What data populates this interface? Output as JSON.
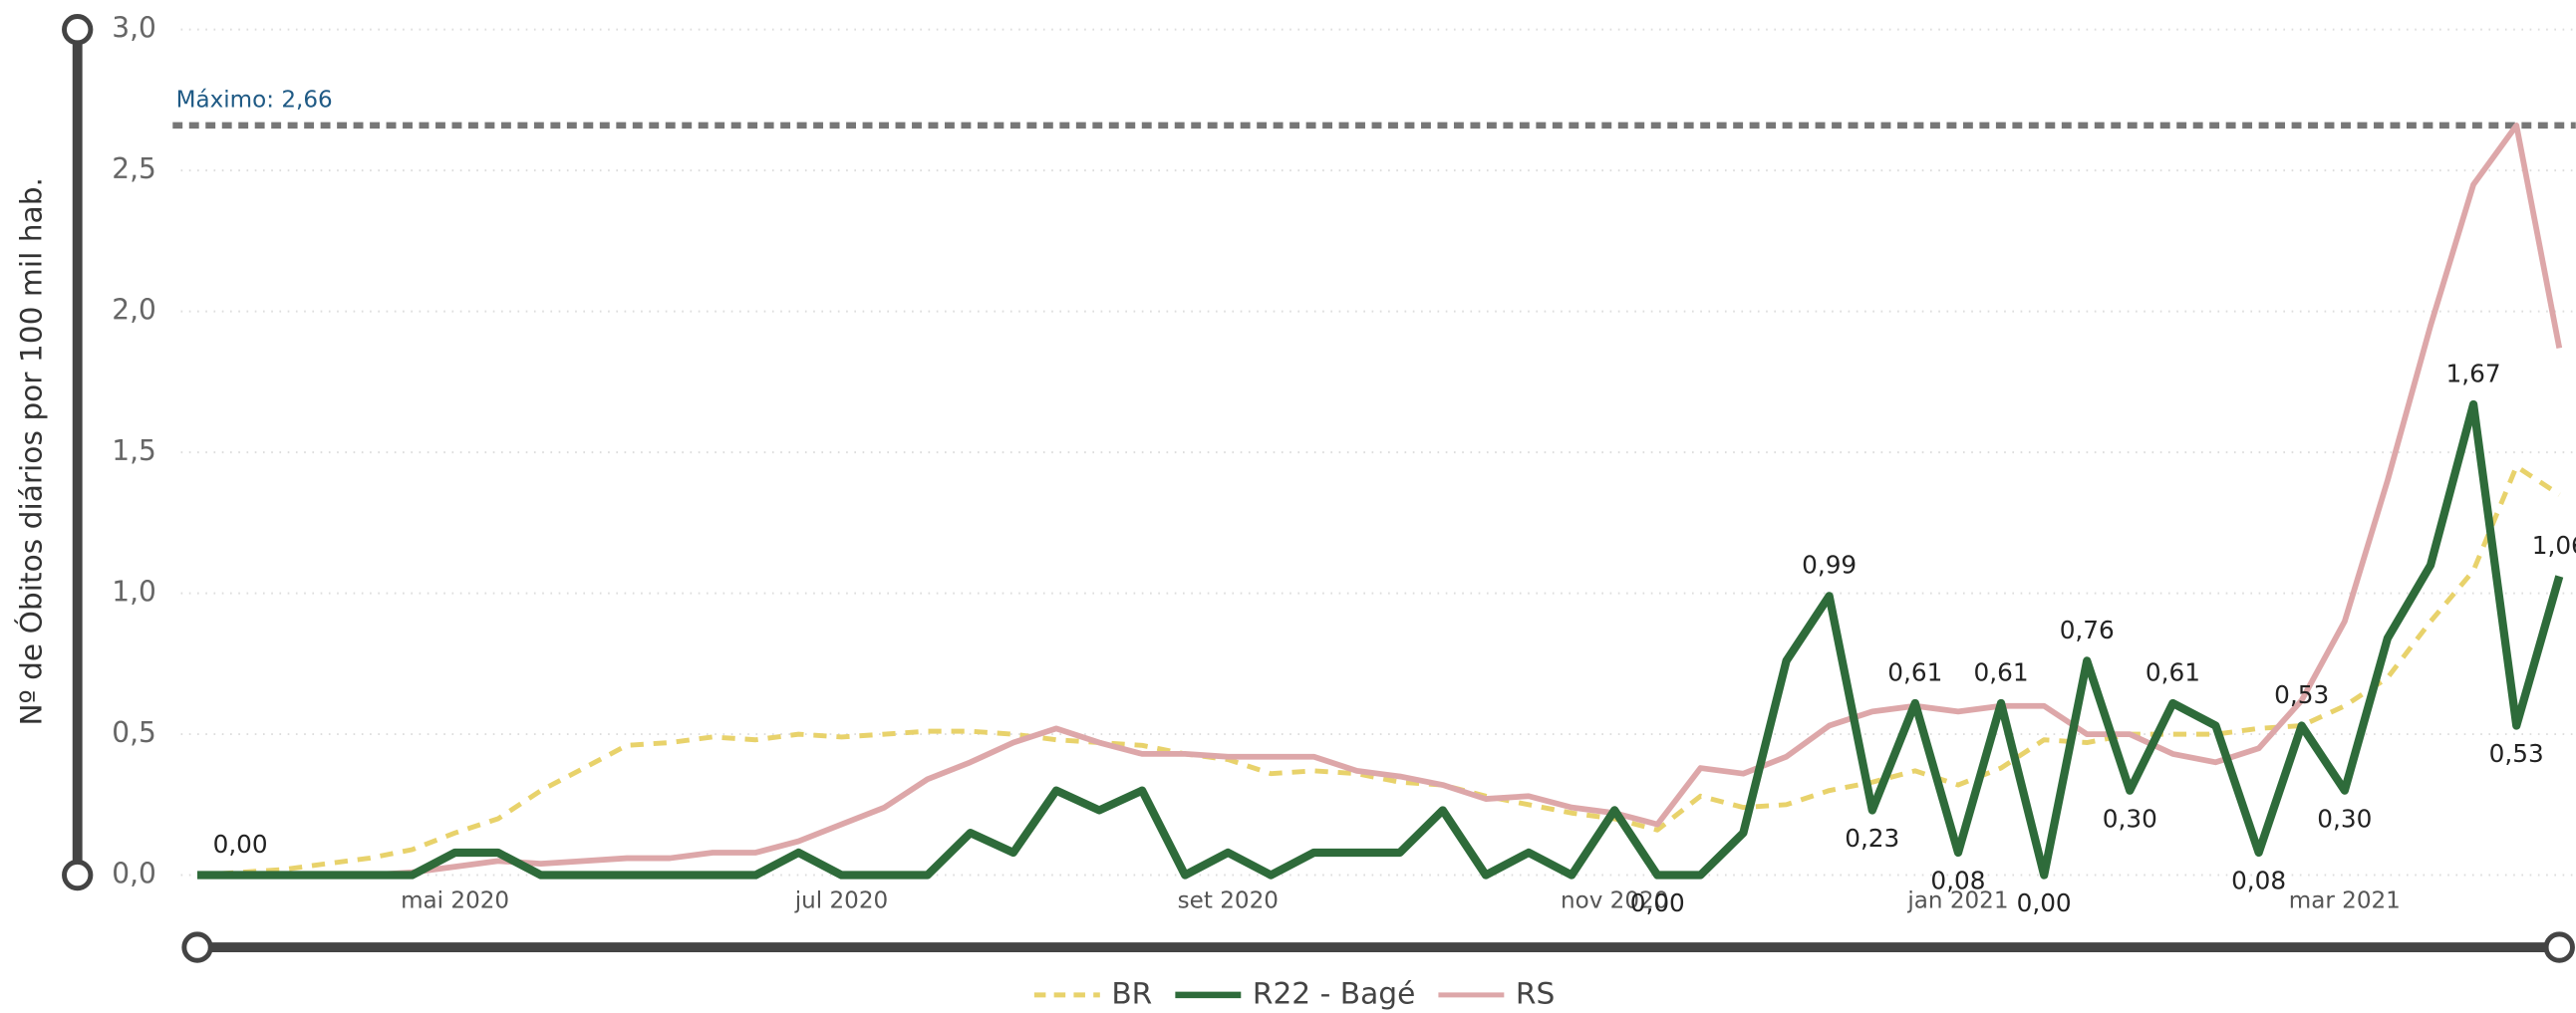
{
  "chart_data": {
    "type": "line",
    "y_label": "Nº de Óbitos diários por 100 mil hab.",
    "ylim": [
      0,
      3
    ],
    "yticks": [
      {
        "value": 0,
        "label": "0,0"
      },
      {
        "value": 0.5,
        "label": "0,5"
      },
      {
        "value": 1,
        "label": "1,0"
      },
      {
        "value": 1.5,
        "label": "1,5"
      },
      {
        "value": 2,
        "label": "2,0"
      },
      {
        "value": 2.5,
        "label": "2,5"
      },
      {
        "value": 3,
        "label": "3,0"
      }
    ],
    "grid": true,
    "legend": "bottom",
    "max_line": {
      "label": "Máximo: 2,66",
      "value": 2.66,
      "color": "#777777"
    },
    "categories": [
      null,
      null,
      null,
      null,
      null,
      null,
      "mai 2020",
      null,
      null,
      null,
      null,
      null,
      null,
      null,
      null,
      "jul 2020",
      null,
      null,
      null,
      null,
      null,
      null,
      null,
      null,
      "set 2020",
      null,
      null,
      null,
      null,
      null,
      null,
      null,
      null,
      "nov 2020",
      null,
      null,
      null,
      null,
      null,
      null,
      null,
      "jan 2021",
      null,
      null,
      null,
      null,
      null,
      null,
      null,
      null,
      "mar 2021",
      null,
      null,
      null,
      null,
      null
    ],
    "series": [
      {
        "name": "BR",
        "color": "#E8D26B",
        "dashed": true,
        "values": [
          0,
          0.01,
          0.02,
          0.04,
          0.06,
          0.09,
          0.15,
          0.2,
          0.3,
          0.38,
          0.46,
          0.47,
          0.49,
          0.48,
          0.5,
          0.49,
          0.5,
          0.51,
          0.51,
          0.5,
          0.48,
          0.47,
          0.46,
          0.43,
          0.41,
          0.36,
          0.37,
          0.36,
          0.33,
          0.32,
          0.28,
          0.25,
          0.22,
          0.2,
          0.16,
          0.28,
          0.24,
          0.25,
          0.3,
          0.33,
          0.37,
          0.32,
          0.38,
          0.48,
          0.47,
          0.5,
          0.5,
          0.5,
          0.52,
          0.53,
          0.6,
          0.7,
          0.9,
          1.08,
          1.45,
          1.35
        ]
      },
      {
        "name": "R22 - Bagé",
        "color": "#2E6B3A",
        "dashed": false,
        "values": [
          0,
          0,
          0,
          0,
          0,
          0,
          0.08,
          0.08,
          0,
          0,
          0,
          0,
          0,
          0,
          0.08,
          0,
          0,
          0,
          0.15,
          0.08,
          0.3,
          0.23,
          0.3,
          0,
          0.08,
          0,
          0.08,
          0.08,
          0.08,
          0.23,
          0,
          0.08,
          0,
          0.23,
          0,
          0,
          0.15,
          0.76,
          0.99,
          0.23,
          0.61,
          0.08,
          0.61,
          0,
          0.76,
          0.3,
          0.61,
          0.53,
          0.08,
          0.53,
          0.3,
          0.84,
          1.1,
          1.67,
          0.53,
          1.06
        ],
        "value_labels": [
          null,
          "0,00",
          null,
          null,
          null,
          null,
          null,
          null,
          null,
          null,
          null,
          null,
          null,
          null,
          null,
          null,
          null,
          null,
          null,
          null,
          null,
          null,
          null,
          null,
          null,
          null,
          null,
          null,
          null,
          null,
          null,
          null,
          null,
          null,
          "0,00",
          null,
          null,
          null,
          "0,99",
          "0,23",
          "0,61",
          "0,08",
          "0,61",
          "0,00",
          "0,76",
          "0,30",
          "0,61",
          null,
          "0,08",
          "0,53",
          "0,30",
          null,
          null,
          "1,67",
          "0,53",
          "1,06"
        ]
      },
      {
        "name": "RS",
        "color": "#DDA7A9",
        "dashed": false,
        "values": [
          0,
          0,
          0,
          0,
          0,
          0.01,
          0.03,
          0.05,
          0.04,
          0.05,
          0.06,
          0.06,
          0.08,
          0.08,
          0.12,
          0.18,
          0.24,
          0.34,
          0.4,
          0.47,
          0.52,
          0.47,
          0.43,
          0.43,
          0.42,
          0.42,
          0.42,
          0.37,
          0.35,
          0.32,
          0.27,
          0.28,
          0.24,
          0.22,
          0.18,
          0.38,
          0.36,
          0.42,
          0.53,
          0.58,
          0.6,
          0.58,
          0.6,
          0.6,
          0.5,
          0.5,
          0.43,
          0.4,
          0.45,
          0.62,
          0.9,
          1.4,
          1.95,
          2.45,
          2.66,
          1.87
        ]
      }
    ]
  }
}
